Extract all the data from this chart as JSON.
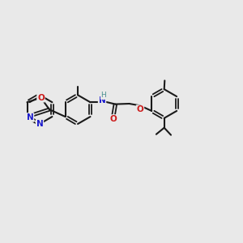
{
  "background_color": "#e9e9e9",
  "bond_color": "#1a1a1a",
  "atom_colors": {
    "N": "#1a1acc",
    "O": "#cc1a1a",
    "H": "#4a9090",
    "C": "#1a1a1a"
  },
  "figsize": [
    3.0,
    3.0
  ],
  "dpi": 100
}
